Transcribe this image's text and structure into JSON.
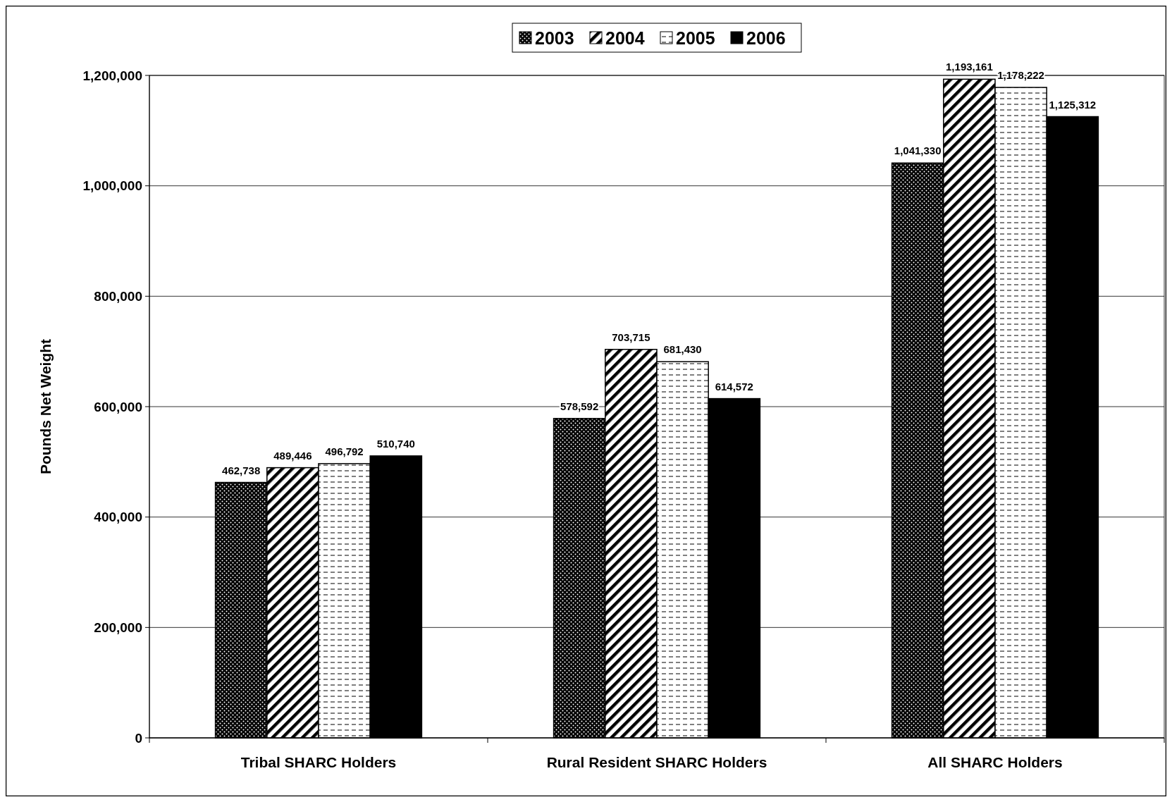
{
  "chart_data": {
    "type": "bar",
    "ylabel": "Pounds Net Weight",
    "categories": [
      "Tribal SHARC Holders",
      "Rural Resident SHARC Holders",
      "All SHARC Holders"
    ],
    "series": [
      {
        "name": "2003",
        "color": "#000000",
        "values": [
          462738,
          578592,
          1041330
        ],
        "value_labels": [
          "462,738",
          "578,592",
          "1,041,330"
        ]
      },
      {
        "name": "2004",
        "color": "#000000",
        "values": [
          489446,
          703715,
          1193161
        ],
        "value_labels": [
          "489,446",
          "703,715",
          "1,193,161"
        ]
      },
      {
        "name": "2005",
        "color": "#000000",
        "values": [
          496792,
          681430,
          1178222
        ],
        "value_labels": [
          "496,792",
          "681,430",
          "1,178,222"
        ]
      },
      {
        "name": "2006",
        "color": "#000000",
        "values": [
          510740,
          614572,
          1125312
        ],
        "value_labels": [
          "510,740",
          "614,572",
          "1,125,312"
        ]
      }
    ],
    "ylim": [
      0,
      1200000
    ],
    "yticks": [
      {
        "value": 0,
        "label": "0"
      },
      {
        "value": 200000,
        "label": "200,000"
      },
      {
        "value": 400000,
        "label": "400,000"
      },
      {
        "value": 600000,
        "label": "600,000"
      },
      {
        "value": 800000,
        "label": "800,000"
      },
      {
        "value": 1000000,
        "label": "1,000,000"
      },
      {
        "value": 1200000,
        "label": "1,200,000"
      }
    ],
    "grid": "y",
    "legend": "top"
  }
}
